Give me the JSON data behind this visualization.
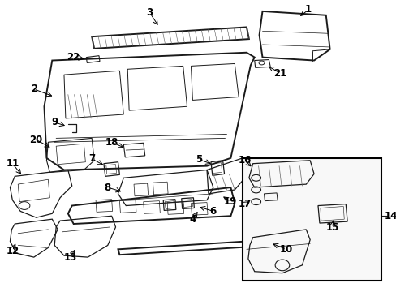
{
  "bg_color": "#ffffff",
  "lc": "#1a1a1a",
  "lw": 0.9,
  "lwt": 1.4,
  "alw": 0.7,
  "fs": 8.5,
  "fig_w": 4.89,
  "fig_h": 3.6,
  "dpi": 100
}
